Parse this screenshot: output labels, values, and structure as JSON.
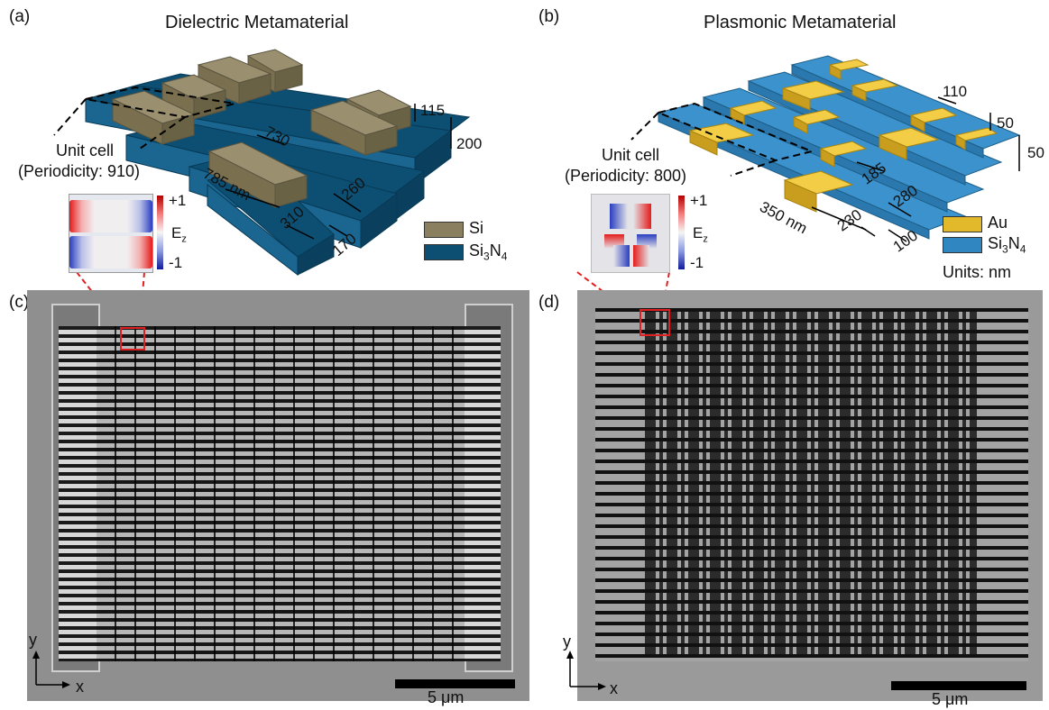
{
  "figure": {
    "panel_a": {
      "label": "(a)",
      "title": "Dielectric Metamaterial",
      "unit_cell_line1": "Unit cell",
      "unit_cell_line2": "(Periodicity: 910)",
      "dims": {
        "d115": "115",
        "d200": "200",
        "d730": "730",
        "d785": "785 nm",
        "d260": "260",
        "d310": "310",
        "d170": "170"
      },
      "legend": [
        {
          "label_main": "Si",
          "sub": "",
          "tail": "",
          "color": "#8a8060"
        },
        {
          "label_main": "Si",
          "sub": "3",
          "mid": "N",
          "sub2": "4",
          "color": "#0d4f73"
        }
      ],
      "colorbar": {
        "max": "+1",
        "min": "-1",
        "label_main": "E",
        "label_sub": "z"
      }
    },
    "panel_b": {
      "label": "(b)",
      "title": "Plasmonic Metamaterial",
      "unit_cell_line1": "Unit cell",
      "unit_cell_line2": "(Periodicity: 800)",
      "dims": {
        "d110": "110",
        "d50a": "50",
        "d50b": "50",
        "d185": "185",
        "d280": "280",
        "d350": "350 nm",
        "d230": "230",
        "d100": "100"
      },
      "legend": [
        {
          "label_main": "Au",
          "color": "#e3b92c"
        },
        {
          "label_main": "Si",
          "sub": "3",
          "mid": "N",
          "sub2": "4",
          "color": "#2f86c0"
        }
      ],
      "units": "Units: nm",
      "colorbar": {
        "max": "+1",
        "min": "-1",
        "label_main": "E",
        "label_sub": "z"
      }
    },
    "panel_c": {
      "label": "(c)",
      "axis_x": "x",
      "axis_y": "y",
      "scale": "5 μm"
    },
    "panel_d": {
      "label": "(d)",
      "axis_x": "x",
      "axis_y": "y",
      "scale": "5 μm"
    }
  },
  "colors": {
    "si": "#8a8060",
    "si3n4_dark": "#0d4f73",
    "au": "#e3b92c",
    "si3n4_light": "#2f86c0",
    "red_box": "#e02020"
  }
}
